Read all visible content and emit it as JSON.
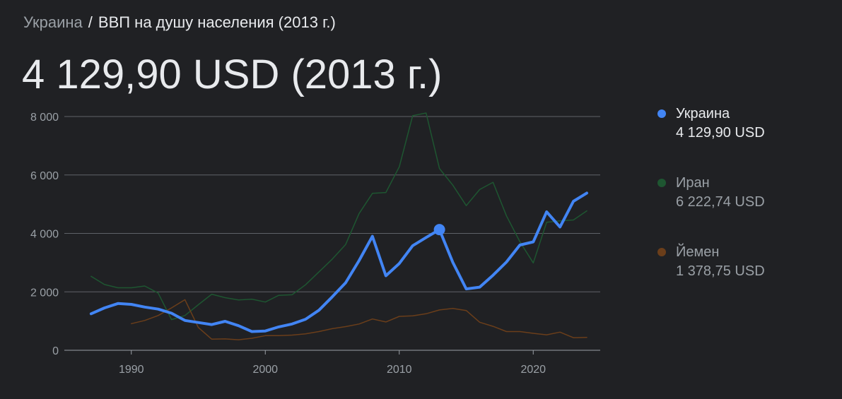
{
  "breadcrumb": {
    "country": "Украина",
    "separator": "/",
    "metric": "ВВП на душу населения (2013 г.)"
  },
  "headline": "4 129,90 USD (2013 г.)",
  "legend": [
    {
      "name": "Украина",
      "value": "4 129,90 USD",
      "color": "#4285f4",
      "state": "active"
    },
    {
      "name": "Иран",
      "value": "6 222,74 USD",
      "color": "#1e5631",
      "state": "inactive"
    },
    {
      "name": "Йемен",
      "value": "1 378,75 USD",
      "color": "#6b3e1a",
      "state": "inactive"
    }
  ],
  "chart_data": {
    "type": "line",
    "title": "",
    "xlabel": "",
    "ylabel": "",
    "xlim": [
      1985,
      2025
    ],
    "ylim": [
      0,
      8000
    ],
    "x_ticks": [
      1990,
      2000,
      2010,
      2020
    ],
    "x_tick_labels": [
      "1990",
      "2000",
      "2010",
      "2020"
    ],
    "y_ticks": [
      0,
      2000,
      4000,
      6000,
      8000
    ],
    "y_tick_labels": [
      "0",
      "2 000",
      "4 000",
      "6 000",
      "8 000"
    ],
    "grid": "horizontal",
    "legend_position": "right",
    "highlight": {
      "series": "Украина",
      "x": 2013,
      "y": 4129.9
    },
    "series": [
      {
        "name": "Иран",
        "color": "#1e5631",
        "line_width": 1.5,
        "x": [
          1987,
          1988,
          1989,
          1990,
          1991,
          1992,
          1993,
          1994,
          1995,
          1996,
          1997,
          1998,
          1999,
          2000,
          2001,
          2002,
          2003,
          2004,
          2005,
          2006,
          2007,
          2008,
          2009,
          2010,
          2011,
          2012,
          2013,
          2014,
          2015,
          2016,
          2017,
          2018,
          2019,
          2020,
          2021,
          2022,
          2023,
          2024
        ],
        "y": [
          2530,
          2250,
          2140,
          2140,
          2200,
          1960,
          1050,
          1190,
          1560,
          1920,
          1800,
          1720,
          1750,
          1650,
          1880,
          1900,
          2240,
          2680,
          3120,
          3620,
          4680,
          5370,
          5400,
          6280,
          8030,
          8120,
          6220,
          5650,
          4950,
          5500,
          5750,
          4600,
          3720,
          2990,
          4380,
          4430,
          4460,
          4770
        ]
      },
      {
        "name": "Йемен",
        "color": "#6b3e1a",
        "line_width": 1.5,
        "x": [
          1990,
          1991,
          1992,
          1993,
          1994,
          1995,
          1996,
          1997,
          1998,
          1999,
          2000,
          2001,
          2002,
          2003,
          2004,
          2005,
          2006,
          2007,
          2008,
          2009,
          2010,
          2011,
          2012,
          2013,
          2014,
          2015,
          2016,
          2017,
          2018,
          2019,
          2020,
          2021,
          2022,
          2023,
          2024
        ],
        "y": [
          910,
          1020,
          1190,
          1450,
          1730,
          780,
          380,
          390,
          360,
          410,
          500,
          500,
          520,
          560,
          640,
          740,
          810,
          900,
          1070,
          970,
          1160,
          1180,
          1250,
          1380,
          1430,
          1360,
          960,
          820,
          640,
          640,
          580,
          530,
          620,
          430,
          440
        ]
      },
      {
        "name": "Украина",
        "color": "#4285f4",
        "line_width": 4,
        "x": [
          1987,
          1988,
          1989,
          1990,
          1991,
          1992,
          1993,
          1994,
          1995,
          1996,
          1997,
          1998,
          1999,
          2000,
          2001,
          2002,
          2003,
          2004,
          2005,
          2006,
          2007,
          2008,
          2009,
          2010,
          2011,
          2012,
          2013,
          2014,
          2015,
          2016,
          2017,
          2018,
          2019,
          2020,
          2021,
          2022,
          2023,
          2024
        ],
        "y": [
          1250,
          1450,
          1600,
          1570,
          1480,
          1410,
          1270,
          1020,
          950,
          880,
          990,
          840,
          640,
          660,
          800,
          900,
          1060,
          1370,
          1830,
          2310,
          3070,
          3900,
          2550,
          2970,
          3580,
          3860,
          4130,
          3010,
          2100,
          2160,
          2570,
          3020,
          3600,
          3710,
          4740,
          4220,
          5100,
          5380
        ]
      }
    ]
  }
}
